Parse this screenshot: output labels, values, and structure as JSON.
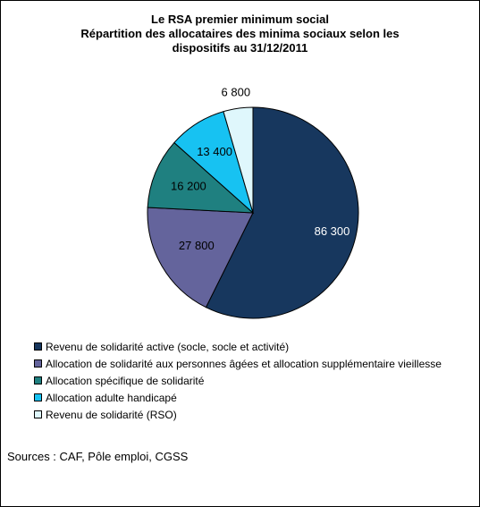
{
  "chart_data": {
    "type": "pie",
    "title": "Le RSA premier minimum social",
    "subtitle": "Répartition des allocataires des minima sociaux selon les dispositifs au 31/12/2011",
    "title_lines": [
      "Le RSA premier minimum social",
      "Répartition des allocataires des minima sociaux selon les",
      "dispositifs au 31/12/2011"
    ],
    "categories": [
      "Revenu de solidarité active (socle, socle et activité)",
      "Allocation de solidarité aux personnes âgées et allocation supplémentaire vieillesse",
      "Allocation spécifique de solidarité",
      "Allocation adulte handicapé",
      "Revenu de solidarité (RSO)"
    ],
    "values": [
      86300,
      27800,
      16200,
      13400,
      6800
    ],
    "data_labels": [
      "86 300",
      "27 800",
      "16 200",
      "13 400",
      "6 800"
    ],
    "colors": [
      "#17375E",
      "#64649C",
      "#1F8080",
      "#17C2F2",
      "#DFF7FC"
    ],
    "label_colors": [
      "#FFFFFF",
      "#000000",
      "#000000",
      "#000000",
      "#000000"
    ],
    "legend_position": "bottom-left",
    "start_angle": "top, clockwise"
  },
  "footer": {
    "sources": "Sources : CAF, Pôle emploi, CGSS"
  }
}
